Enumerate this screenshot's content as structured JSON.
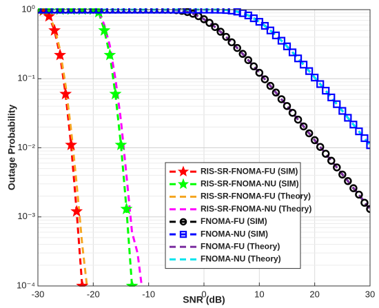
{
  "chart_data": {
    "type": "line",
    "xlabel": "SNR (dB)",
    "ylabel": "Outage Probability",
    "xlim": [
      -30,
      30
    ],
    "xticks": [
      -30,
      -20,
      -10,
      0,
      10,
      20,
      30
    ],
    "ylim": [
      0.0001,
      1
    ],
    "yscale": "log",
    "yticks": [
      {
        "value": 0.0001,
        "label": "10⁻⁴"
      },
      {
        "value": 0.001,
        "label": "10⁻³"
      },
      {
        "value": 0.01,
        "label": "10⁻²"
      },
      {
        "value": 0.1,
        "label": "10⁻¹"
      },
      {
        "value": 1,
        "label": "10⁰"
      }
    ],
    "grid": true,
    "series": [
      {
        "name": "RIS-SR-FNOMA-FU (SIM)",
        "color": "#ff0000",
        "marker": "star",
        "marker_fill": "#ff0000",
        "x": [
          -30,
          -29,
          -28,
          -27,
          -26,
          -25,
          -24,
          -23,
          -22
        ],
        "values": [
          1,
          0.97,
          0.8,
          0.5,
          0.22,
          0.06,
          0.011,
          0.0012,
          0.0001
        ]
      },
      {
        "name": "RIS-SR-FNOMA-NU (SIM)",
        "color": "#00ff00",
        "marker": "star",
        "marker_fill": "#00ff00",
        "x": [
          -30,
          -28,
          -26,
          -24,
          -22,
          -20,
          -19,
          -18,
          -17,
          -16,
          -15,
          -14,
          -13
        ],
        "values": [
          1,
          1,
          1,
          1,
          1,
          1,
          0.92,
          0.5,
          0.22,
          0.06,
          0.011,
          0.0013,
          0.0001
        ]
      },
      {
        "name": "RIS-SR-FNOMA-FU (Theory)",
        "color": "#f5a623",
        "marker": null,
        "x": [
          -30,
          -29,
          -28,
          -27,
          -26,
          -25,
          -24,
          -23,
          -22,
          -21
        ],
        "values": [
          1,
          0.97,
          0.82,
          0.55,
          0.26,
          0.08,
          0.018,
          0.003,
          0.0004,
          8e-05
        ]
      },
      {
        "name": "RIS-SR-FNOMA-NU (Theory)",
        "color": "#ff00ff",
        "marker": null,
        "x": [
          -30,
          -20,
          -19,
          -18,
          -17,
          -16,
          -15,
          -14,
          -13,
          -12,
          -11
        ],
        "values": [
          1,
          1,
          0.95,
          0.6,
          0.3,
          0.1,
          0.025,
          0.004,
          0.0006,
          0.0003,
          7e-05
        ]
      },
      {
        "name": "FNOMA-FU (SIM)",
        "color": "#000000",
        "marker": "circle",
        "x": [
          -30,
          -29,
          -28,
          -27,
          -26,
          -25,
          -24,
          -23,
          -22,
          -21,
          -20,
          -19,
          -18,
          -17,
          -16,
          -15,
          -14,
          -13,
          -12,
          -11,
          -10,
          -9,
          -8,
          -7,
          -6,
          -5,
          -4,
          -3,
          -2,
          -1,
          0,
          1,
          2,
          3,
          4,
          5,
          6,
          7,
          8,
          9,
          10,
          11,
          12,
          13,
          14,
          15,
          16,
          17,
          18,
          19,
          20,
          21,
          22,
          23,
          24,
          25,
          26,
          27,
          28,
          29,
          30
        ],
        "values": [
          1,
          1,
          1,
          1,
          1,
          1,
          1,
          1,
          1,
          1,
          1,
          1,
          1,
          1,
          1,
          1,
          1,
          1,
          1,
          1,
          1,
          1,
          0.9997,
          0.9985,
          0.9944,
          0.984,
          0.962,
          0.925,
          0.873,
          0.805,
          0.727,
          0.644,
          0.56,
          0.479,
          0.404,
          0.337,
          0.279,
          0.229,
          0.186,
          0.151,
          0.122,
          0.0981,
          0.0787,
          0.0631,
          0.0505,
          0.0403,
          0.0321,
          0.0256,
          0.0204,
          0.0162,
          0.0129,
          0.0103,
          0.0082,
          0.0065,
          0.0052,
          0.0041,
          0.0033,
          0.0026,
          0.0021,
          0.0016,
          0.0013
        ]
      },
      {
        "name": "FNOMA-NU (SIM)",
        "color": "#0000ff",
        "marker": "square",
        "x": [
          -30,
          -29,
          -28,
          -27,
          -26,
          -25,
          -24,
          -23,
          -22,
          -21,
          -20,
          -19,
          -18,
          -17,
          -16,
          -15,
          -14,
          -13,
          -12,
          -11,
          -10,
          -9,
          -8,
          -7,
          -6,
          -5,
          -4,
          -3,
          -2,
          -1,
          0,
          1,
          2,
          3,
          4,
          5,
          6,
          7,
          8,
          9,
          10,
          11,
          12,
          13,
          14,
          15,
          16,
          17,
          18,
          19,
          20,
          21,
          22,
          23,
          24,
          25,
          26,
          27,
          28,
          29,
          30
        ],
        "values": [
          1,
          1,
          1,
          1,
          1,
          1,
          1,
          1,
          1,
          1,
          1,
          1,
          1,
          1,
          1,
          1,
          1,
          1,
          1,
          1,
          1,
          1,
          1,
          1,
          1,
          1,
          1,
          1,
          1,
          1,
          1,
          0.9998,
          0.999,
          0.996,
          0.9875,
          0.969,
          0.937,
          0.889,
          0.825,
          0.75,
          0.667,
          0.583,
          0.5,
          0.424,
          0.355,
          0.294,
          0.241,
          0.197,
          0.16,
          0.129,
          0.104,
          0.0837,
          0.0671,
          0.0536,
          0.0428,
          0.0342,
          0.0272,
          0.0217,
          0.0173,
          0.0138,
          0.0109
        ]
      },
      {
        "name": "FNOMA-FU (Theory)",
        "color": "#7b2fa0",
        "marker": null,
        "x": [
          -30,
          -10,
          -8,
          -6,
          -4,
          -2,
          0,
          2,
          4,
          6,
          8,
          10,
          12,
          14,
          16,
          18,
          20,
          22,
          24,
          26,
          28,
          30
        ],
        "values": [
          1,
          1,
          0.9997,
          0.9944,
          0.962,
          0.873,
          0.727,
          0.56,
          0.404,
          0.279,
          0.186,
          0.122,
          0.0787,
          0.0505,
          0.0321,
          0.0204,
          0.0129,
          0.0082,
          0.0052,
          0.0033,
          0.0021,
          0.0013
        ]
      },
      {
        "name": "FNOMA-NU (Theory)",
        "color": "#00e5ee",
        "marker": null,
        "x": [
          -30,
          0,
          2,
          4,
          6,
          8,
          10,
          12,
          14,
          16,
          18,
          20,
          22,
          24,
          26,
          28,
          30
        ],
        "values": [
          1,
          1,
          0.999,
          0.9875,
          0.937,
          0.825,
          0.667,
          0.5,
          0.355,
          0.241,
          0.16,
          0.104,
          0.0671,
          0.0428,
          0.0272,
          0.0173,
          0.0109
        ]
      }
    ]
  }
}
